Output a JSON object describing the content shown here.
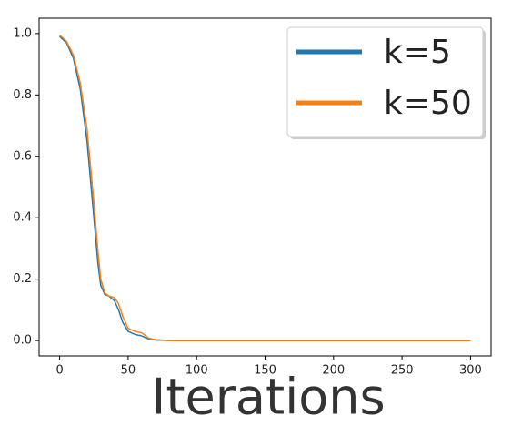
{
  "chart_data": {
    "type": "line",
    "x_label": "Iterations",
    "x": [
      0,
      5,
      10,
      15,
      20,
      25,
      28,
      30,
      33,
      36,
      40,
      43,
      46,
      50,
      55,
      60,
      65,
      70,
      80,
      100,
      150,
      200,
      250,
      300
    ],
    "series": [
      {
        "name": "k=5",
        "color": "#1f77b4",
        "values": [
          0.99,
          0.97,
          0.92,
          0.82,
          0.65,
          0.4,
          0.25,
          0.18,
          0.15,
          0.145,
          0.13,
          0.1,
          0.06,
          0.03,
          0.02,
          0.015,
          0.005,
          0.002,
          0.0,
          0.0,
          0.0,
          0.0,
          0.0,
          0.0
        ]
      },
      {
        "name": "k=50",
        "color": "#ff7f0e",
        "values": [
          0.995,
          0.975,
          0.93,
          0.84,
          0.69,
          0.45,
          0.29,
          0.2,
          0.155,
          0.145,
          0.14,
          0.12,
          0.08,
          0.04,
          0.03,
          0.025,
          0.008,
          0.003,
          0.0,
          0.0,
          0.0,
          0.0,
          0.0,
          0.0
        ]
      }
    ],
    "xlim": [
      -15,
      315
    ],
    "ylim": [
      -0.05,
      1.05
    ],
    "xticks": [
      0,
      50,
      100,
      150,
      200,
      250,
      300
    ],
    "yticks": [
      {
        "value": 0,
        "label": "0.0"
      },
      {
        "value": 0.2,
        "label": "0.2"
      },
      {
        "value": 0.4,
        "label": "0.4"
      },
      {
        "value": 0.6,
        "label": "0.6"
      },
      {
        "value": 0.8,
        "label": "0.8"
      },
      {
        "value": 1,
        "label": "1.0"
      }
    ],
    "legend": "upper right"
  }
}
